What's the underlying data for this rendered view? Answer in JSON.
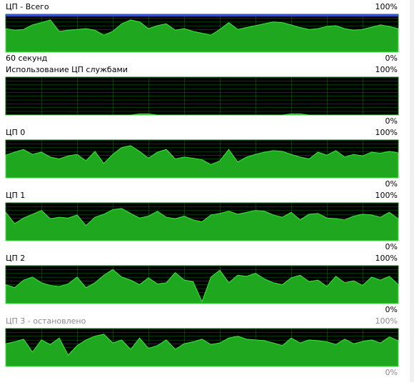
{
  "chart_data": [
    {
      "type": "area",
      "title": "ЦП - Всего",
      "xlabel": "60 секунд",
      "ceiling_color": "#3a52c8",
      "label_color": "#000000",
      "color": "#1fa81f",
      "line_color": "#44e044",
      "ylim": [
        0,
        100
      ],
      "yticks": [
        {
          "value": 0,
          "label": "0%"
        },
        {
          "value": 100,
          "label": "100%"
        }
      ],
      "values": [
        62,
        58,
        60,
        72,
        78,
        85,
        55,
        58,
        60,
        62,
        58,
        45,
        55,
        75,
        85,
        80,
        62,
        70,
        75,
        58,
        62,
        55,
        50,
        45,
        60,
        78,
        60,
        65,
        70,
        75,
        80,
        78,
        72,
        65,
        60,
        62,
        68,
        70,
        62,
        58,
        60,
        66,
        72,
        68,
        62
      ]
    },
    {
      "type": "area",
      "title": "Использование ЦП службами",
      "label_color": "#000000",
      "color": "#1fa81f",
      "line_color": "#44e044",
      "ylim": [
        0,
        100
      ],
      "yticks": [
        {
          "value": 0,
          "label": "0%"
        },
        {
          "value": 100,
          "label": "100%"
        }
      ],
      "values": [
        0,
        0,
        0,
        0,
        0,
        0,
        0,
        0,
        0,
        0,
        0,
        0,
        0,
        0,
        0,
        3,
        3,
        0,
        0,
        0,
        0,
        0,
        0,
        0,
        0,
        0,
        0,
        0,
        0,
        0,
        0,
        0,
        3,
        3,
        0,
        0,
        0,
        0,
        0,
        0,
        0,
        0,
        0,
        0,
        0
      ]
    },
    {
      "type": "area",
      "title": "ЦП 0",
      "label_color": "#000000",
      "color": "#1fa81f",
      "line_color": "#44e044",
      "ylim": [
        0,
        100
      ],
      "yticks": [
        {
          "value": 0,
          "label": "0%"
        },
        {
          "value": 100,
          "label": "100%"
        }
      ],
      "values": [
        60,
        68,
        75,
        62,
        68,
        55,
        50,
        58,
        62,
        45,
        70,
        38,
        62,
        80,
        85,
        70,
        52,
        68,
        75,
        50,
        55,
        52,
        48,
        35,
        45,
        75,
        42,
        55,
        62,
        68,
        72,
        70,
        62,
        55,
        50,
        68,
        60,
        72,
        55,
        62,
        58,
        68,
        65,
        70,
        66
      ]
    },
    {
      "type": "area",
      "title": "ЦП 1",
      "label_color": "#000000",
      "color": "#1fa81f",
      "line_color": "#44e044",
      "ylim": [
        0,
        100
      ],
      "yticks": [
        {
          "value": 0,
          "label": "0%"
        },
        {
          "value": 100,
          "label": "100%"
        }
      ],
      "values": [
        75,
        45,
        60,
        70,
        80,
        58,
        62,
        60,
        68,
        40,
        62,
        70,
        82,
        85,
        72,
        60,
        65,
        78,
        62,
        58,
        65,
        55,
        50,
        68,
        72,
        78,
        70,
        75,
        80,
        78,
        68,
        62,
        75,
        55,
        70,
        72,
        60,
        58,
        55,
        65,
        70,
        68,
        62,
        75,
        58
      ]
    },
    {
      "type": "area",
      "title": "ЦП 2",
      "label_color": "#000000",
      "color": "#1fa81f",
      "line_color": "#44e044",
      "ylim": [
        0,
        100
      ],
      "yticks": [
        {
          "value": 0,
          "label": "0%"
        },
        {
          "value": 100,
          "label": "100%"
        }
      ],
      "values": [
        50,
        42,
        62,
        70,
        55,
        48,
        45,
        52,
        70,
        42,
        55,
        75,
        90,
        70,
        62,
        50,
        68,
        52,
        55,
        82,
        62,
        58,
        5,
        70,
        88,
        55,
        75,
        72,
        80,
        65,
        55,
        50,
        68,
        75,
        58,
        62,
        45,
        72,
        55,
        60,
        48,
        70,
        62,
        72,
        50
      ]
    },
    {
      "type": "area",
      "title": "ЦП 3 - остановлено",
      "label_color": "#8a8a8a",
      "color": "#1fa81f",
      "line_color": "#44e044",
      "ylim": [
        0,
        100
      ],
      "yticks": [
        {
          "value": 0,
          "label": "0%"
        },
        {
          "value": 100,
          "label": "100%"
        }
      ],
      "values": [
        60,
        65,
        72,
        38,
        70,
        58,
        75,
        30,
        55,
        70,
        80,
        85,
        62,
        70,
        45,
        75,
        48,
        55,
        70,
        45,
        60,
        65,
        72,
        58,
        62,
        75,
        80,
        72,
        70,
        68,
        62,
        55,
        75,
        62,
        70,
        68,
        65,
        58,
        72,
        60,
        66,
        70,
        62,
        78,
        68
      ]
    }
  ]
}
